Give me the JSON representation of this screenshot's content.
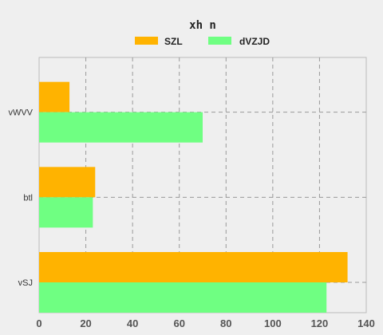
{
  "chart_data": {
    "type": "bar",
    "orientation": "horizontal",
    "title": "xh  n",
    "categories": [
      "vWVV",
      "btl",
      "vSJ"
    ],
    "series": [
      {
        "name": "SZL",
        "color": "#ffb300",
        "values": [
          13,
          24,
          132
        ]
      },
      {
        "name": "dVZJD",
        "color": "#6fff82",
        "values": [
          70,
          23,
          123
        ]
      }
    ],
    "xlim": [
      0,
      140
    ],
    "xticks": [
      0,
      20,
      40,
      60,
      80,
      100,
      120,
      140
    ],
    "xlabel": "",
    "ylabel": "",
    "grid": true,
    "legend": "top-center"
  }
}
